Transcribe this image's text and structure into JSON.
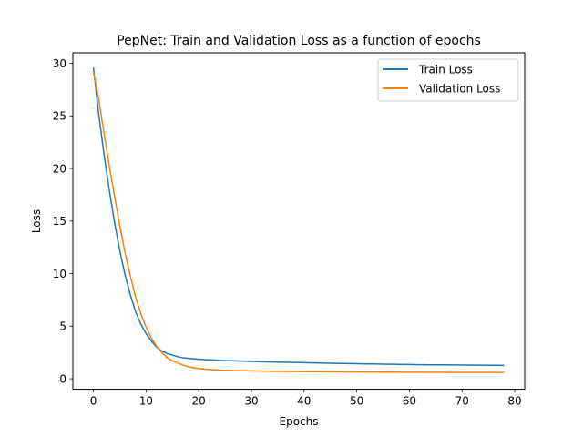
{
  "chart_data": {
    "type": "line",
    "title": "PepNet: Train and Validation Loss as a function of epochs",
    "xlabel": "Epochs",
    "ylabel": "Loss",
    "xlim": [
      -3.9,
      81.9
    ],
    "ylim": [
      -1.0,
      31.0
    ],
    "xticks": [
      0,
      10,
      20,
      30,
      40,
      50,
      60,
      70,
      80
    ],
    "yticks": [
      0,
      5,
      10,
      15,
      20,
      25,
      30
    ],
    "legend_position": "top-right",
    "grid": false,
    "series": [
      {
        "name": "Train Loss",
        "color": "#1f77b4",
        "x": [
          0,
          1,
          2,
          3,
          4,
          5,
          6,
          7,
          8,
          9,
          10,
          11,
          12,
          13,
          14,
          15,
          16,
          17,
          18,
          19,
          20,
          21,
          22,
          23,
          24,
          25,
          26,
          27,
          28,
          29,
          30,
          31,
          32,
          33,
          34,
          35,
          36,
          37,
          38,
          39,
          40,
          41,
          42,
          43,
          44,
          45,
          46,
          47,
          48,
          49,
          50,
          51,
          52,
          53,
          54,
          55,
          56,
          57,
          58,
          59,
          60,
          61,
          62,
          63,
          64,
          65,
          66,
          67,
          68,
          69,
          70,
          71,
          72,
          73,
          74,
          75,
          76,
          77,
          78
        ],
        "y": [
          29.6,
          25.2,
          21.4,
          18.0,
          14.9,
          12.2,
          9.9,
          8.0,
          6.4,
          5.2,
          4.3,
          3.6,
          3.0,
          2.65,
          2.4,
          2.25,
          2.1,
          2.0,
          1.95,
          1.9,
          1.85,
          1.82,
          1.8,
          1.78,
          1.75,
          1.73,
          1.72,
          1.7,
          1.68,
          1.67,
          1.65,
          1.64,
          1.62,
          1.61,
          1.6,
          1.58,
          1.57,
          1.56,
          1.55,
          1.54,
          1.53,
          1.52,
          1.51,
          1.5,
          1.49,
          1.48,
          1.47,
          1.46,
          1.45,
          1.44,
          1.43,
          1.42,
          1.41,
          1.41,
          1.4,
          1.39,
          1.38,
          1.38,
          1.37,
          1.36,
          1.36,
          1.35,
          1.34,
          1.34,
          1.33,
          1.33,
          1.32,
          1.32,
          1.31,
          1.31,
          1.3,
          1.3,
          1.3,
          1.29,
          1.29,
          1.28,
          1.28,
          1.28,
          1.27
        ]
      },
      {
        "name": "Validation Loss",
        "color": "#ff7f0e",
        "x": [
          0,
          1,
          2,
          3,
          4,
          5,
          6,
          7,
          8,
          9,
          10,
          11,
          12,
          13,
          14,
          15,
          16,
          17,
          18,
          19,
          20,
          21,
          22,
          23,
          24,
          25,
          26,
          27,
          28,
          29,
          30,
          31,
          32,
          33,
          34,
          35,
          36,
          37,
          38,
          39,
          40,
          41,
          42,
          43,
          44,
          45,
          46,
          47,
          48,
          49,
          50,
          51,
          52,
          53,
          54,
          55,
          56,
          57,
          58,
          59,
          60,
          61,
          62,
          63,
          64,
          65,
          66,
          67,
          68,
          69,
          70,
          71,
          72,
          73,
          74,
          75,
          76,
          77,
          78
        ],
        "y": [
          29.2,
          26.6,
          23.4,
          20.3,
          17.4,
          14.6,
          12.0,
          9.8,
          7.8,
          6.2,
          4.9,
          3.9,
          3.1,
          2.5,
          2.0,
          1.7,
          1.5,
          1.3,
          1.15,
          1.05,
          0.97,
          0.92,
          0.88,
          0.85,
          0.83,
          0.81,
          0.79,
          0.78,
          0.77,
          0.76,
          0.75,
          0.74,
          0.73,
          0.72,
          0.71,
          0.71,
          0.7,
          0.7,
          0.69,
          0.69,
          0.68,
          0.68,
          0.67,
          0.67,
          0.66,
          0.66,
          0.66,
          0.65,
          0.65,
          0.65,
          0.64,
          0.64,
          0.64,
          0.64,
          0.63,
          0.63,
          0.63,
          0.63,
          0.62,
          0.62,
          0.62,
          0.62,
          0.62,
          0.61,
          0.61,
          0.61,
          0.61,
          0.61,
          0.6,
          0.6,
          0.6,
          0.6,
          0.6,
          0.6,
          0.6,
          0.6,
          0.6,
          0.6,
          0.6
        ]
      }
    ]
  }
}
